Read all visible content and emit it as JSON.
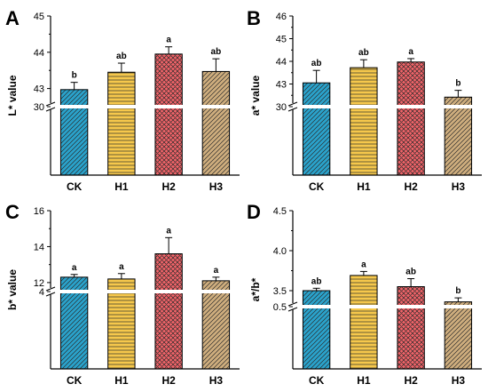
{
  "colors": {
    "CK": "#2AA3CC",
    "H1": "#F6C84C",
    "H2": "#F26469",
    "H3": "#CFAE7E",
    "axis": "#000000",
    "break": "#ffffff"
  },
  "patterns": {
    "CK": "diagonal-lines",
    "H1": "horizontal-lines",
    "H2": "crosshatch",
    "H3": "diagonal-lines"
  },
  "chart_data": [
    {
      "type": "bar",
      "panel": "A",
      "ylabel": "L* value",
      "categories": [
        "CK",
        "H1",
        "H2",
        "H3"
      ],
      "values": [
        42.97,
        43.45,
        43.95,
        43.47
      ],
      "errors": [
        0.2,
        0.25,
        0.2,
        0.35
      ],
      "significance": [
        "b",
        "ab",
        "a",
        "ab"
      ],
      "axis_break": true,
      "lower_range": [
        0,
        30
      ],
      "lower_ticks": [
        "30"
      ],
      "upper_range": [
        42.5,
        45
      ],
      "upper_ticks": [
        "43",
        "44",
        "45"
      ]
    },
    {
      "type": "bar",
      "panel": "B",
      "ylabel": "a* value",
      "categories": [
        "CK",
        "H1",
        "H2",
        "H3"
      ],
      "values": [
        43.05,
        43.72,
        43.97,
        42.42
      ],
      "errors": [
        0.55,
        0.35,
        0.15,
        0.3
      ],
      "significance": [
        "ab",
        "ab",
        "a",
        "b"
      ],
      "axis_break": true,
      "lower_range": [
        0,
        30
      ],
      "lower_ticks": [
        "30"
      ],
      "upper_range": [
        42,
        46
      ],
      "upper_ticks": [
        "43",
        "44",
        "45",
        "46"
      ]
    },
    {
      "type": "bar",
      "panel": "C",
      "ylabel": "b* value",
      "categories": [
        "CK",
        "H1",
        "H2",
        "H3"
      ],
      "values": [
        12.3,
        12.2,
        13.6,
        12.1
      ],
      "errors": [
        0.15,
        0.3,
        0.9,
        0.2
      ],
      "significance": [
        "a",
        "a",
        "a",
        "a"
      ],
      "axis_break": true,
      "lower_range": [
        0,
        4
      ],
      "lower_ticks": [
        "4"
      ],
      "upper_range": [
        11.5,
        16
      ],
      "upper_ticks": [
        "12",
        "14",
        "16"
      ]
    },
    {
      "type": "bar",
      "panel": "D",
      "ylabel": "a*/b*",
      "categories": [
        "CK",
        "H1",
        "H2",
        "H3"
      ],
      "values": [
        3.5,
        3.69,
        3.55,
        3.36
      ],
      "errors": [
        0.03,
        0.05,
        0.1,
        0.05
      ],
      "significance": [
        "ab",
        "a",
        "ab",
        "b"
      ],
      "axis_break": true,
      "lower_range": [
        0,
        0.5
      ],
      "lower_ticks": [
        "0.5"
      ],
      "upper_range": [
        3.3,
        4.5
      ],
      "upper_ticks": [
        "3.5",
        "4.0",
        "4.5"
      ]
    }
  ]
}
